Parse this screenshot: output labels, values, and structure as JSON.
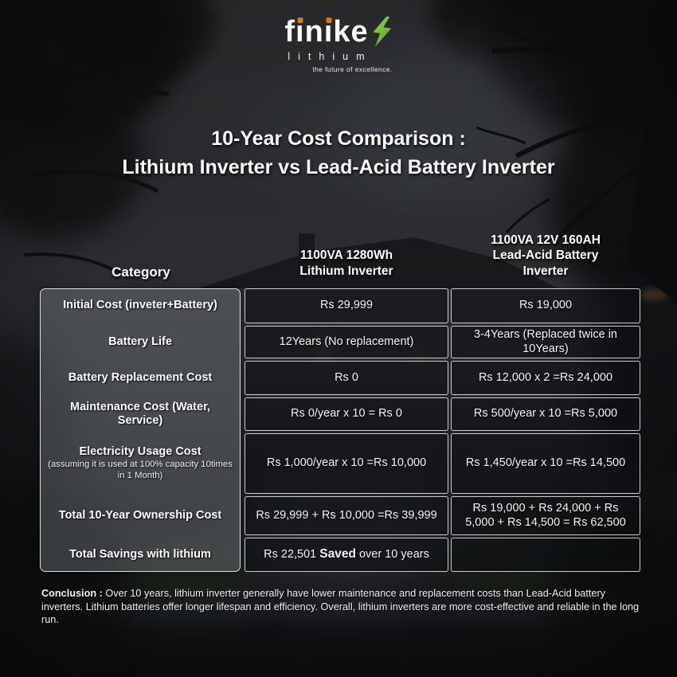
{
  "logo": {
    "brand": "finike",
    "sub": "lithium",
    "tagline": "the future of excellence.",
    "bolt_icon": "lightning-bolt",
    "colors": {
      "accent_orange": "#d9771d",
      "bolt_green": "#7dc93e"
    }
  },
  "title": {
    "line1": "10-Year Cost Comparison :",
    "line2": "Lithium Inverter vs Lead-Acid Battery Inverter"
  },
  "table": {
    "columns": [
      {
        "label": "Category"
      },
      {
        "label": "1100VA 1280Wh\nLithium Inverter"
      },
      {
        "label": "1100VA 12V 160AH\nLead-Acid Battery\nInverter"
      }
    ],
    "rows": [
      {
        "category": "Initial Cost (inveter+Battery)",
        "lithium": "Rs 29,999",
        "lead_acid": "Rs 19,000"
      },
      {
        "category": "Battery Life",
        "lithium": "12Years (No replacement)",
        "lead_acid": "3-4Years (Replaced twice in 10Years)"
      },
      {
        "category": "Battery Replacement Cost",
        "lithium": "Rs 0",
        "lead_acid": "Rs 12,000 x 2 =Rs 24,000"
      },
      {
        "category": "Maintenance Cost (Water, Service)",
        "lithium": "Rs 0/year x 10 = Rs 0",
        "lead_acid": "Rs 500/year x 10 =Rs 5,000"
      },
      {
        "category": "Electricity Usage Cost",
        "note": "(assuming it is used at 100% capacity 10times in 1 Month)",
        "lithium": "Rs 1,000/year x 10 =Rs 10,000",
        "lead_acid": "Rs 1,450/year x 10 =Rs 14,500"
      },
      {
        "category": "Total 10-Year Ownership Cost",
        "lithium": "Rs 29,999 + Rs 10,000 =Rs 39,999",
        "lead_acid": "Rs 19,000 + Rs 24,000 + Rs 5,000 + Rs 14,500 = Rs 62,500"
      },
      {
        "category": "Total Savings with lithium",
        "savings_pre": "Rs 22,501",
        "savings_bold": "Saved",
        "savings_post": "over 10 years",
        "lead_acid": ""
      }
    ],
    "border_color": "#e7e7e7"
  },
  "conclusion": {
    "label": "Conclusion :",
    "text": "Over 10 years, lithium inverter generally have lower maintenance and replacement costs than Lead-Acid battery inverters. Lithium batteries offer longer lifespan and efficiency. Overall, lithium inverters are more cost-effective and reliable in the long run."
  }
}
